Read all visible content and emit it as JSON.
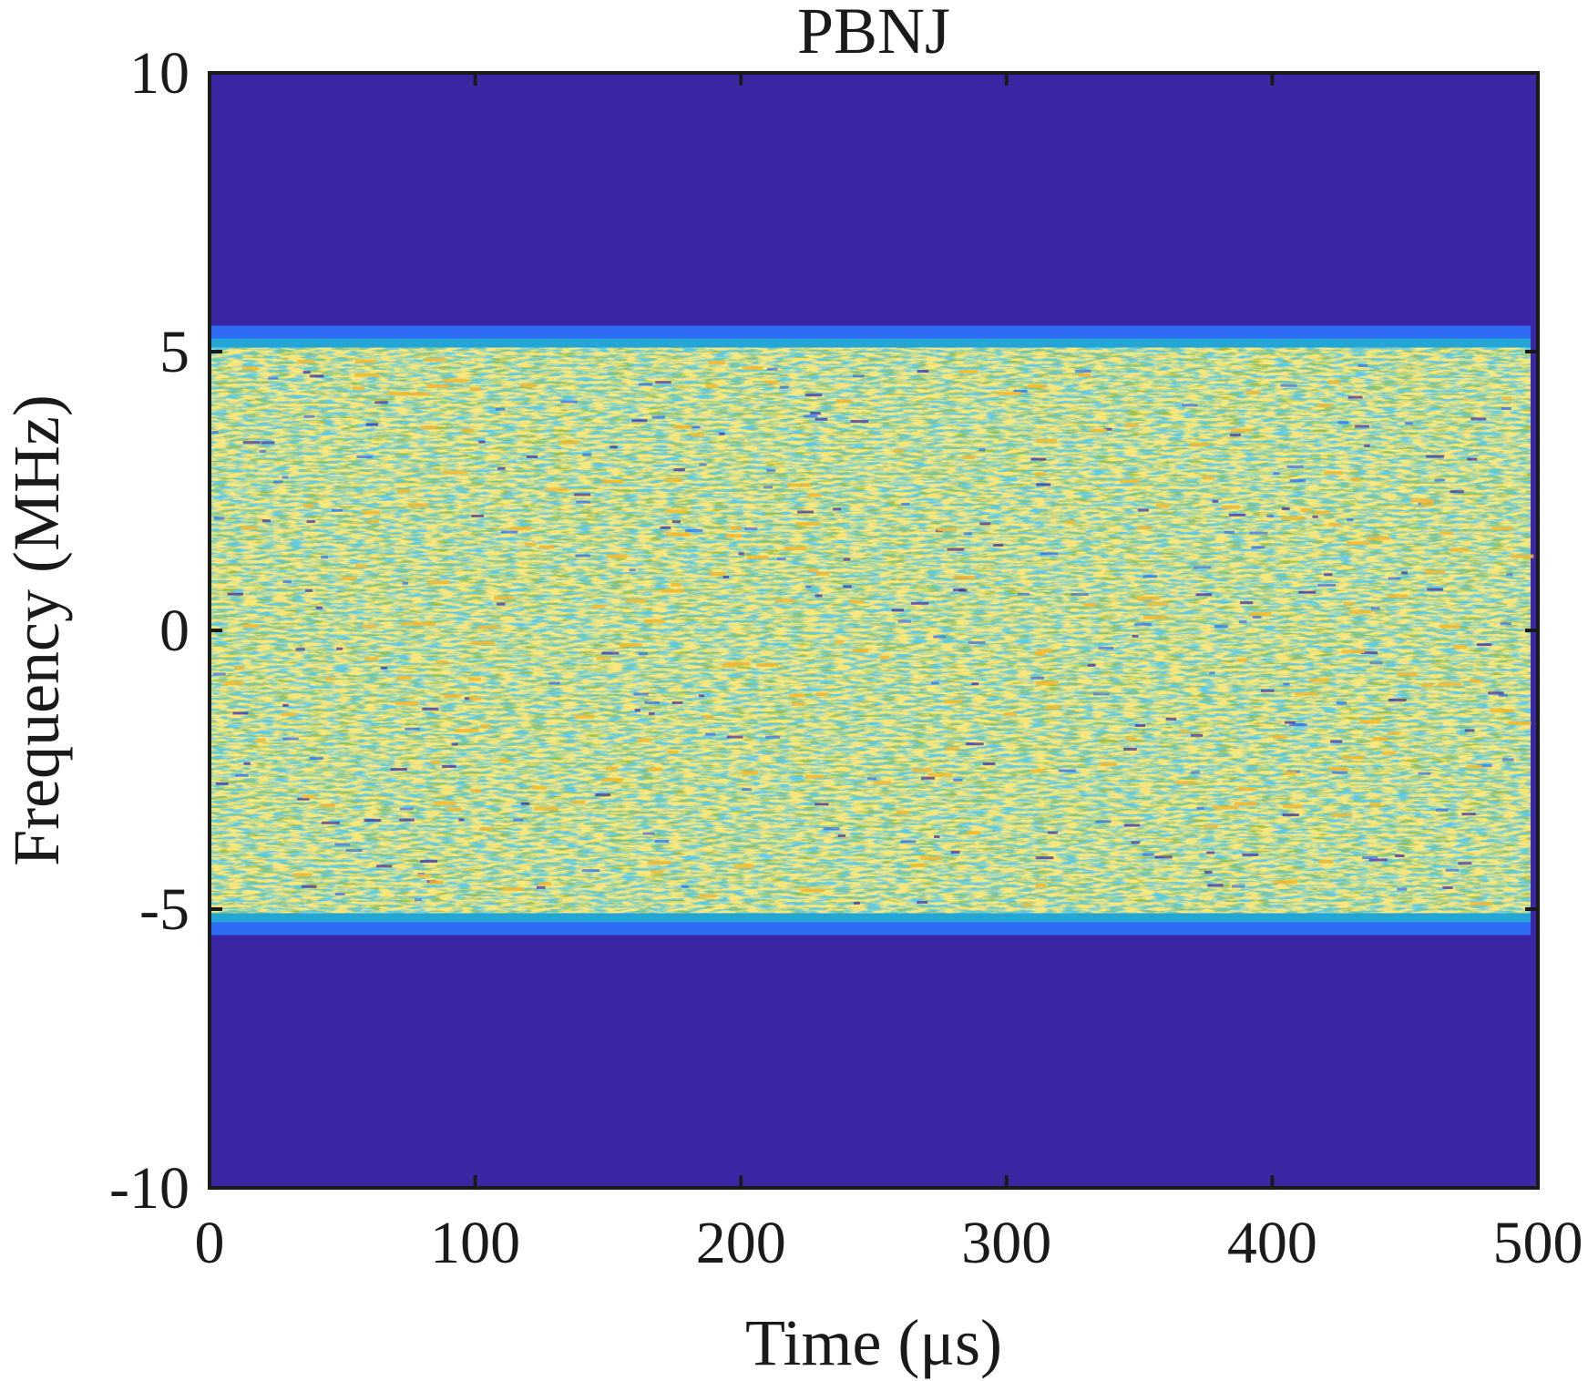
{
  "chart_data": {
    "type": "heatmap",
    "title": "PBNJ",
    "xlabel": "Time  (μs)",
    "ylabel": "Frequency (MHz)",
    "xlim": [
      0,
      500
    ],
    "ylim": [
      -10,
      10
    ],
    "xticks": [
      0,
      100,
      200,
      300,
      400,
      500
    ],
    "yticks": [
      -10,
      -5,
      0,
      5,
      10
    ],
    "xtick_labels": [
      "0",
      "100",
      "200",
      "300",
      "400",
      "500"
    ],
    "ytick_labels": [
      "-10",
      "-5",
      "0",
      "5",
      "10"
    ],
    "band": {
      "freq_low": -5.4,
      "freq_high": 5.4,
      "time_start": 0,
      "time_end": 500
    },
    "grid": false,
    "colormap": [
      "#3e26a8",
      "#2f6cf5",
      "#23a6d6",
      "#3fbf8f",
      "#a5be34",
      "#f5b82e"
    ],
    "colors": {
      "background": "#3b27a3",
      "axes": "#1a1a1a"
    }
  }
}
